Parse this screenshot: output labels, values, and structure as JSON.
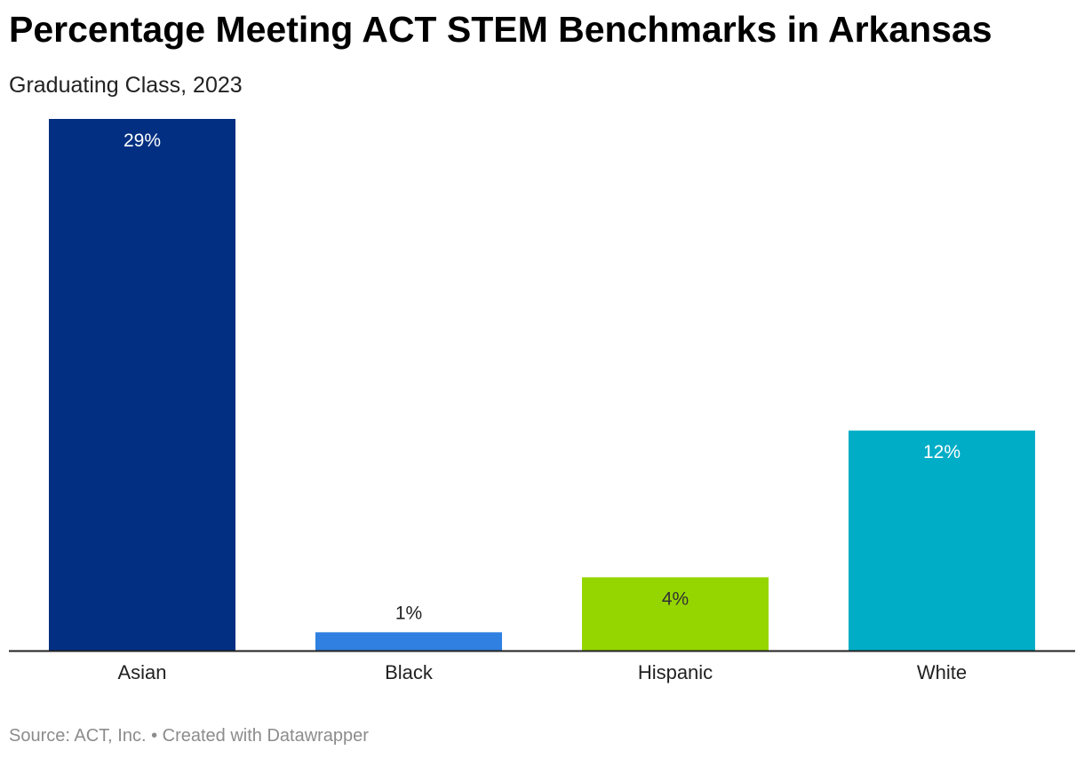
{
  "header": {
    "title": "Percentage Meeting ACT STEM Benchmarks in Arkansas",
    "subtitle": "Graduating Class, 2023"
  },
  "footer": {
    "text": "Source: ACT, Inc. • Created with Datawrapper"
  },
  "chart_data": {
    "type": "bar",
    "categories": [
      "Asian",
      "Black",
      "Hispanic",
      "White"
    ],
    "values": [
      29,
      1,
      4,
      12
    ],
    "value_labels": [
      "29%",
      "1%",
      "4%",
      "12%"
    ],
    "colors": [
      "#022f82",
      "#2f80e0",
      "#95d600",
      "#00adc6"
    ],
    "label_colors": [
      "#ffffff",
      "#222222",
      "#333333",
      "#ffffff"
    ],
    "title": "Percentage Meeting ACT STEM Benchmarks in Arkansas",
    "subtitle": "Graduating Class, 2023",
    "ylim": [
      0,
      29
    ],
    "grid": false,
    "legend": "none"
  }
}
